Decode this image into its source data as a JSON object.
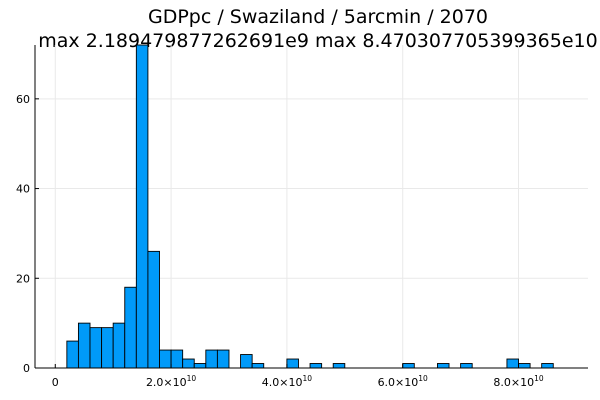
{
  "chart_data": {
    "type": "histogram",
    "title": "GDPpc / Swaziland / 5arcmin / 2070",
    "subtitle": "max 2.189479877262691e9  max 8.470307705399365e10",
    "xlabel": "",
    "ylabel": "",
    "xlim": [
      -3500000000.0,
      92000000000.0
    ],
    "ylim": [
      0,
      72
    ],
    "grid": true,
    "legend": "none",
    "color": "#009af9",
    "bin_width": 2000000000.0,
    "bins": [
      {
        "x0": 2000000000.0,
        "x1": 4000000000.0,
        "count": 6
      },
      {
        "x0": 4000000000.0,
        "x1": 6000000000.0,
        "count": 10
      },
      {
        "x0": 6000000000.0,
        "x1": 8000000000.0,
        "count": 9
      },
      {
        "x0": 8000000000.0,
        "x1": 10000000000.0,
        "count": 9
      },
      {
        "x0": 10000000000.0,
        "x1": 12000000000.0,
        "count": 10
      },
      {
        "x0": 12000000000.0,
        "x1": 14000000000.0,
        "count": 18
      },
      {
        "x0": 14000000000.0,
        "x1": 16000000000.0,
        "count": 72
      },
      {
        "x0": 16000000000.0,
        "x1": 18000000000.0,
        "count": 26
      },
      {
        "x0": 18000000000.0,
        "x1": 20000000000.0,
        "count": 4
      },
      {
        "x0": 20000000000.0,
        "x1": 22000000000.0,
        "count": 4
      },
      {
        "x0": 22000000000.0,
        "x1": 24000000000.0,
        "count": 2
      },
      {
        "x0": 24000000000.0,
        "x1": 26000000000.0,
        "count": 1
      },
      {
        "x0": 26000000000.0,
        "x1": 28000000000.0,
        "count": 4
      },
      {
        "x0": 28000000000.0,
        "x1": 30000000000.0,
        "count": 4
      },
      {
        "x0": 32000000000.0,
        "x1": 34000000000.0,
        "count": 3
      },
      {
        "x0": 34000000000.0,
        "x1": 36000000000.0,
        "count": 1
      },
      {
        "x0": 40000000000.0,
        "x1": 42000000000.0,
        "count": 2
      },
      {
        "x0": 44000000000.0,
        "x1": 46000000000.0,
        "count": 1
      },
      {
        "x0": 48000000000.0,
        "x1": 50000000000.0,
        "count": 1
      },
      {
        "x0": 60000000000.0,
        "x1": 62000000000.0,
        "count": 1
      },
      {
        "x0": 66000000000.0,
        "x1": 68000000000.0,
        "count": 1
      },
      {
        "x0": 70000000000.0,
        "x1": 72000000000.0,
        "count": 1
      },
      {
        "x0": 78000000000.0,
        "x1": 80000000000.0,
        "count": 2
      },
      {
        "x0": 80000000000.0,
        "x1": 82000000000.0,
        "count": 1
      },
      {
        "x0": 84000000000.0,
        "x1": 86000000000.0,
        "count": 1
      }
    ],
    "xticks": [
      {
        "value": 0,
        "mantissa": "0",
        "exponent": ""
      },
      {
        "value": 20000000000.0,
        "mantissa": "2.0×10",
        "exponent": "10"
      },
      {
        "value": 40000000000.0,
        "mantissa": "4.0×10",
        "exponent": "10"
      },
      {
        "value": 60000000000.0,
        "mantissa": "6.0×10",
        "exponent": "10"
      },
      {
        "value": 80000000000.0,
        "mantissa": "8.0×10",
        "exponent": "10"
      }
    ],
    "yticks": [
      {
        "value": 0,
        "label": "0"
      },
      {
        "value": 20,
        "label": "20"
      },
      {
        "value": 40,
        "label": "40"
      },
      {
        "value": 60,
        "label": "60"
      }
    ]
  }
}
